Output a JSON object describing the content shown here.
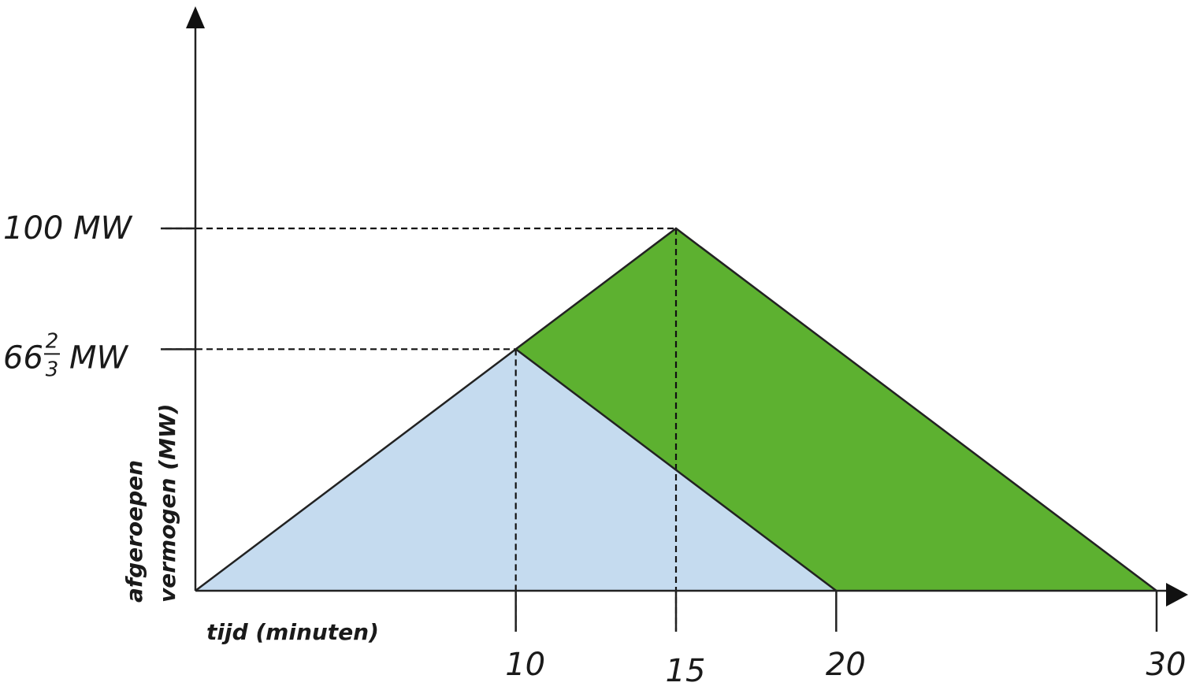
{
  "chart_data": {
    "type": "area",
    "xlabel": "tijd (minuten)",
    "ylabel_line1": "afgeroepen",
    "ylabel_line2": "vermogen (MW)",
    "xlim": [
      0,
      30
    ],
    "ylim": [
      0,
      100
    ],
    "x_ticks": [
      {
        "value": 10,
        "label": "10"
      },
      {
        "value": 15,
        "label": "15"
      },
      {
        "value": 20,
        "label": "20"
      },
      {
        "value": 30,
        "label": "30"
      }
    ],
    "y_ticks": [
      {
        "value": 100,
        "label": "100 MW"
      },
      {
        "value": 66.667,
        "whole": "66",
        "num": "2",
        "den": "3",
        "unit": "MW"
      }
    ],
    "series": [
      {
        "color": "#c5dbef",
        "points": [
          [
            0,
            0
          ],
          [
            10,
            66.667
          ],
          [
            20,
            0
          ]
        ]
      },
      {
        "color": "#5db130",
        "points": [
          [
            10,
            66.667
          ],
          [
            15,
            100
          ],
          [
            30,
            0
          ],
          [
            20,
            0
          ]
        ]
      }
    ],
    "outline": {
      "upper": [
        [
          0,
          0
        ],
        [
          10,
          66.667
        ],
        [
          15,
          100
        ],
        [
          30,
          0
        ]
      ],
      "inner": [
        [
          10,
          66.667
        ],
        [
          20,
          0
        ]
      ]
    },
    "guides": [
      {
        "type": "h",
        "y": 100,
        "x_to": 15
      },
      {
        "type": "h",
        "y": 66.667,
        "x_to": 10
      },
      {
        "type": "v",
        "x": 10,
        "y_from": 66.667
      },
      {
        "type": "v",
        "x": 15,
        "y_from": 100
      }
    ]
  }
}
